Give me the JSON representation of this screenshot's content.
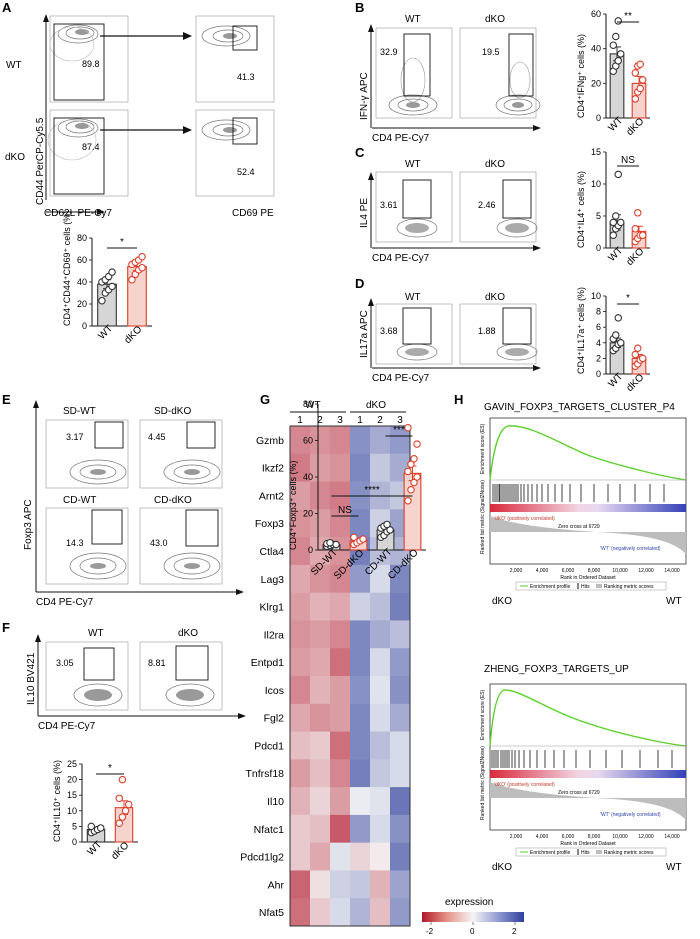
{
  "figure": {
    "panels": {
      "A": {
        "label": "A",
        "rows": [
          "WT",
          "dKO"
        ],
        "gate1_pct": [
          "89.8",
          "87.4"
        ],
        "gate2_pct": [
          "41.3",
          "52.4"
        ],
        "y_axis": "CD44 PerCP-Cy5.5",
        "x_axis_1": "CD62L PE-Cy7",
        "x_axis_2": "CD69 PE",
        "significance": "*"
      },
      "B": {
        "label": "B",
        "groups": [
          "WT",
          "dKO"
        ],
        "gate_pct": [
          "32.9",
          "19.5"
        ],
        "y_axis": "IFN-γ APC",
        "x_axis": "CD4 PE-Cy7",
        "significance": "**"
      },
      "C": {
        "label": "C",
        "groups": [
          "WT",
          "dKO"
        ],
        "gate_pct": [
          "3.61",
          "2.46"
        ],
        "y_axis": "IL4 PE",
        "x_axis": "CD4 PE-Cy7",
        "significance": "NS"
      },
      "D": {
        "label": "D",
        "groups": [
          "WT",
          "dKO"
        ],
        "gate_pct": [
          "3.68",
          "1.88"
        ],
        "y_axis": "IL17a APC",
        "x_axis": "CD4 PE-Cy7",
        "significance": "*"
      },
      "E": {
        "label": "E",
        "groups": [
          "SD-WT",
          "SD-dKO",
          "CD-WT",
          "CD-dKO"
        ],
        "gate_pct": [
          "3.17",
          "4.45",
          "14.3",
          "43.0"
        ],
        "y_axis": "Foxp3 APC",
        "x_axis": "CD4 PE-Cy7",
        "sig_1": "NS",
        "sig_2": "****",
        "sig_3": "***"
      },
      "F": {
        "label": "F",
        "groups": [
          "WT",
          "dKO"
        ],
        "gate_pct": [
          "3.05",
          "8.81"
        ],
        "y_axis": "IL10 BV421",
        "x_axis": "CD4 PE-Cy7",
        "significance": "*"
      },
      "G": {
        "label": "G",
        "group_wt": "WT",
        "group_dko": "dKO",
        "replicates": [
          "1",
          "2",
          "3",
          "1",
          "2",
          "3"
        ],
        "genes": [
          "Gzmb",
          "Ikzf2",
          "Arnt2",
          "Foxp3",
          "Ctla4",
          "Lag3",
          "Klrg1",
          "Il2ra",
          "Entpd1",
          "Icos",
          "Fgl2",
          "Pdcd1",
          "Tnfrsf18",
          "Il10",
          "Nfatc1",
          "Pdcd1lg2",
          "Ahr",
          "Nfat5"
        ],
        "legend_title": "expression",
        "legend_ticks": [
          "-2",
          "0",
          "2"
        ]
      },
      "H": {
        "label": "H",
        "plots": [
          {
            "title": "GAVIN_FOXP3_TARGETS_CLUSTER_P4",
            "left": "dKO",
            "right": "WT",
            "y_label": "Enrichment score (ES)",
            "y_label_2": "Ranked list metric (Signal2Noise)",
            "x_label": "Rank in Ordered Dataset",
            "x_ticks": [
              "2,000",
              "4,000",
              "6,000",
              "8,000",
              "10,000",
              "12,000",
              "14,000"
            ],
            "pos_label": "'dKO' (positively correlated)",
            "neg_label": "'WT' (negatively correlated)",
            "zero_cross": "Zero cross at 6729",
            "legend": [
              "Enrichment profile",
              "Hits",
              "Ranking metric scores"
            ]
          },
          {
            "title": "ZHENG_FOXP3_TARGETS_UP",
            "left": "dKO",
            "right": "WT",
            "y_label": "Enrichment score (ES)",
            "y_label_2": "Ranked list metric (Signal2Noise)",
            "x_label": "Rank in Ordered Dataset",
            "x_ticks": [
              "2,000",
              "4,000",
              "6,000",
              "8,000",
              "10,000",
              "12,000",
              "14,000"
            ],
            "pos_label": "'dKO' (positively correlated)",
            "neg_label": "'WT' (negatively correlated)",
            "zero_cross": "Zero cross at 6729",
            "legend": [
              "Enrichment profile",
              "Hits",
              "Ranking metric scores"
            ]
          }
        ]
      }
    }
  },
  "chart_data": [
    {
      "panel": "A",
      "type": "bar",
      "ylabel": "CD4⁺CD44⁺CD69⁺ cells (%)",
      "categories": [
        "WT",
        "dKO"
      ],
      "values": [
        38,
        54
      ],
      "error": [
        4,
        3.5
      ],
      "points": [
        [
          23,
          30,
          33,
          36,
          40,
          42,
          45,
          49
        ],
        [
          42,
          47,
          51,
          53,
          56,
          58,
          60,
          63
        ]
      ],
      "ylim": [
        0,
        80
      ],
      "yticks": [
        "0",
        "20",
        "40",
        "60",
        "80"
      ],
      "colors": [
        "#333333",
        "#d9402b"
      ],
      "fills": [
        "#d6d6d6",
        "#f6d3cc"
      ],
      "significance": "*"
    },
    {
      "panel": "B",
      "type": "bar",
      "ylabel": "CD4⁺IFNg⁺ cells (%)",
      "categories": [
        "WT",
        "dKO"
      ],
      "values": [
        37,
        20
      ],
      "error": [
        4,
        4
      ],
      "points": [
        [
          27,
          30,
          33,
          37,
          42,
          47,
          56
        ],
        [
          11,
          15,
          17,
          22,
          26,
          30,
          31
        ]
      ],
      "ylim": [
        0,
        60
      ],
      "yticks": [
        "0",
        "20",
        "40",
        "60"
      ],
      "colors": [
        "#333333",
        "#d9402b"
      ],
      "fills": [
        "#d6d6d6",
        "#f6d3cc"
      ],
      "significance": "**"
    },
    {
      "panel": "C",
      "type": "bar",
      "ylabel": "CD4⁺IL4⁺ cells (%)",
      "categories": [
        "WT",
        "dKO"
      ],
      "values": [
        4,
        2.6
      ],
      "error": [
        1.2,
        0.8
      ],
      "points": [
        [
          2,
          3,
          3.5,
          4,
          4,
          5,
          11.5
        ],
        [
          1,
          1.5,
          2,
          2,
          3,
          5.5
        ]
      ],
      "ylim": [
        0,
        15
      ],
      "yticks": [
        "0",
        "5",
        "10",
        "15"
      ],
      "colors": [
        "#333333",
        "#d9402b"
      ],
      "fills": [
        "#d6d6d6",
        "#f6d3cc"
      ],
      "significance": "NS"
    },
    {
      "panel": "D",
      "type": "bar",
      "ylabel": "CD4⁺IL17a⁺ cells (%)",
      "categories": [
        "WT",
        "dKO"
      ],
      "values": [
        4,
        2
      ],
      "error": [
        0.6,
        0.5
      ],
      "points": [
        [
          3,
          3.3,
          3.8,
          4,
          4.5,
          5,
          7.2
        ],
        [
          1,
          1.3,
          1.8,
          2,
          2.5,
          3.3
        ]
      ],
      "ylim": [
        0,
        10
      ],
      "yticks": [
        "0",
        "2",
        "4",
        "6",
        "8",
        "10"
      ],
      "colors": [
        "#333333",
        "#d9402b"
      ],
      "fills": [
        "#d6d6d6",
        "#f6d3cc"
      ],
      "significance": "*"
    },
    {
      "panel": "E",
      "type": "bar",
      "ylabel": "CD4⁺Foxp3⁺ cells (%)",
      "categories": [
        "SD-WT",
        "SD-dKO",
        "CD-WT",
        "CD-dKO"
      ],
      "values": [
        3,
        5,
        11,
        42
      ],
      "error": [
        0.5,
        1,
        1.5,
        4
      ],
      "points": [
        [
          2,
          2.5,
          3,
          3,
          3.5,
          4
        ],
        [
          3,
          4,
          5,
          6,
          7
        ],
        [
          7,
          8,
          10,
          11,
          12,
          13,
          14
        ],
        [
          27,
          33,
          37,
          40,
          43,
          47,
          50,
          58,
          67
        ]
      ],
      "ylim": [
        0,
        80
      ],
      "yticks": [
        "0",
        "20",
        "40",
        "60",
        "80"
      ],
      "colors": [
        "#333333",
        "#d9402b",
        "#333333",
        "#d9402b"
      ],
      "fills": [
        "#d6d6d6",
        "#f6d3cc",
        "#d6d6d6",
        "#f6d3cc"
      ],
      "sig": [
        "NS",
        "****",
        "***"
      ]
    },
    {
      "panel": "F",
      "type": "bar",
      "ylabel": "CD4⁺IL10⁺ cells (%)",
      "categories": [
        "WT",
        "dKO"
      ],
      "values": [
        4,
        11
      ],
      "error": [
        0.6,
        2.2
      ],
      "points": [
        [
          3,
          3.5,
          4,
          4.5,
          5
        ],
        [
          6,
          8,
          10,
          12,
          14,
          20
        ]
      ],
      "ylim": [
        0,
        25
      ],
      "yticks": [
        "0",
        "5",
        "10",
        "15",
        "20",
        "25"
      ],
      "colors": [
        "#333333",
        "#d9402b"
      ],
      "fills": [
        "#d6d6d6",
        "#f6d3cc"
      ],
      "significance": "*"
    },
    {
      "panel": "G",
      "type": "heatmap",
      "rows": [
        "Gzmb",
        "Ikzf2",
        "Arnt2",
        "Foxp3",
        "Ctla4",
        "Lag3",
        "Klrg1",
        "Il2ra",
        "Entpd1",
        "Icos",
        "Fgl2",
        "Pdcd1",
        "Tnfrsf18",
        "Il10",
        "Nfatc1",
        "Pdcd1lg2",
        "Ahr",
        "Nfat5"
      ],
      "columns": [
        "WT 1",
        "WT 2",
        "WT 3",
        "dKO 1",
        "dKO 2",
        "dKO 3"
      ],
      "values": [
        [
          -1.0,
          -0.9,
          -1.0,
          1.1,
          0.8,
          1.0
        ],
        [
          -1.1,
          -0.8,
          -0.9,
          1.2,
          0.5,
          0.8
        ],
        [
          -0.8,
          -1.0,
          -1.1,
          1.1,
          0.7,
          0.5
        ],
        [
          -0.9,
          -0.8,
          -1.0,
          1.2,
          0.4,
          0.9
        ],
        [
          -1.0,
          -0.7,
          -0.9,
          1.3,
          0.6,
          0.7
        ],
        [
          -0.7,
          -0.9,
          -1.0,
          1.0,
          0.3,
          1.2
        ],
        [
          -0.8,
          -0.6,
          -0.7,
          0.4,
          0.6,
          1.3
        ],
        [
          -0.9,
          -0.8,
          -1.0,
          1.2,
          0.8,
          0.6
        ],
        [
          -0.8,
          -0.7,
          -1.2,
          1.2,
          0.3,
          1.0
        ],
        [
          -1.0,
          -0.6,
          -0.8,
          1.1,
          0.2,
          1.1
        ],
        [
          -0.7,
          -0.9,
          -0.8,
          1.2,
          0.3,
          0.8
        ],
        [
          -0.5,
          -0.4,
          -1.2,
          1.2,
          0.6,
          0.3
        ],
        [
          -0.8,
          -0.5,
          -1.0,
          1.3,
          0.5,
          0.3
        ],
        [
          -0.6,
          -0.3,
          -0.8,
          0.1,
          0.2,
          1.4
        ],
        [
          -0.4,
          -0.5,
          -1.4,
          1.0,
          0.3,
          1.1
        ],
        [
          -0.4,
          -0.7,
          0.2,
          -0.3,
          -0.1,
          1.3
        ],
        [
          -1.3,
          -0.2,
          0.4,
          0.5,
          -0.6,
          0.9
        ],
        [
          -1.2,
          -0.4,
          0.3,
          0.7,
          -0.5,
          1.0
        ]
      ],
      "scale": [
        -2,
        2
      ],
      "colors": {
        "low": "#2f3f9c",
        "mid": "#f5f5f5",
        "high": "#b2182b"
      }
    }
  ]
}
